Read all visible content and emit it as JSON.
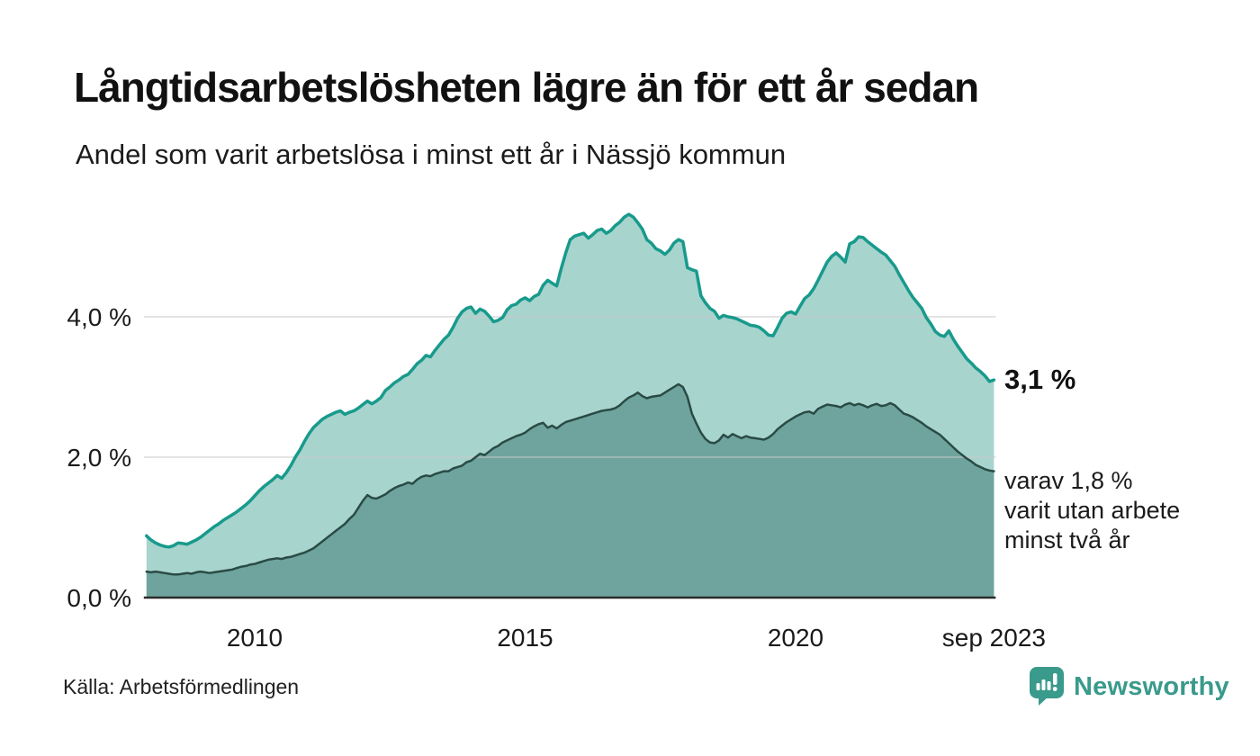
{
  "header": {
    "title": "Långtidsarbetslösheten lägre än för ett år sedan",
    "subtitle": "Andel som varit arbetslösa i minst ett år i Nässjö kommun"
  },
  "annotations": {
    "latest_value_label": "3,1 %",
    "note_lines": [
      "varav 1,8 %",
      "varit utan arbete",
      "minst två år"
    ]
  },
  "source_label": "Källa: Arbetsförmedlingen",
  "logo_text": "Newsworthy",
  "colors": {
    "accent_teal_line": "#189a8c",
    "light_area_fill": "#a8d4ce",
    "dark_area_fill": "#6ea49d",
    "dark_area_line": "#2a4b45",
    "gridline": "#c9c9c9",
    "baseline": "#2b2b2b",
    "logo_teal": "#3a9a8b",
    "text": "#1a1a1a"
  },
  "chart_data": {
    "type": "area",
    "title": "Långtidsarbetslösheten lägre än för ett år sedan",
    "subtitle": "Andel som varit arbetslösa i minst ett år i Nässjö kommun",
    "unit": "%",
    "x_start": "2008-01",
    "x_end": "2023-09",
    "frequency": "monthly",
    "ylim": [
      0,
      5.6
    ],
    "grid": "horizontal",
    "legend_position": "right-annotations",
    "yticks": [
      {
        "value": 0,
        "label": "0,0 %"
      },
      {
        "value": 2,
        "label": "2,0 %"
      },
      {
        "value": 4,
        "label": "4,0 %"
      }
    ],
    "xticks": [
      {
        "month_index": 24,
        "label": "2010"
      },
      {
        "month_index": 84,
        "label": "2015"
      },
      {
        "month_index": 144,
        "label": "2020"
      },
      {
        "month_index": 188,
        "label": "sep 2023"
      }
    ],
    "series": [
      {
        "id": "one_year",
        "name": "Arbetslösa minst ett år",
        "latest_value": 3.1,
        "stroke": "#189a8c",
        "stroke_width": 3.5,
        "fill": "#a8d4ce",
        "values": [
          0.88,
          0.82,
          0.78,
          0.75,
          0.73,
          0.72,
          0.74,
          0.78,
          0.77,
          0.76,
          0.79,
          0.82,
          0.86,
          0.91,
          0.96,
          1.01,
          1.05,
          1.1,
          1.14,
          1.18,
          1.22,
          1.27,
          1.32,
          1.38,
          1.45,
          1.52,
          1.58,
          1.63,
          1.68,
          1.74,
          1.7,
          1.78,
          1.88,
          2.0,
          2.1,
          2.22,
          2.33,
          2.42,
          2.48,
          2.54,
          2.58,
          2.61,
          2.64,
          2.66,
          2.61,
          2.64,
          2.66,
          2.7,
          2.75,
          2.8,
          2.76,
          2.8,
          2.85,
          2.95,
          3.0,
          3.06,
          3.1,
          3.15,
          3.18,
          3.25,
          3.33,
          3.38,
          3.45,
          3.43,
          3.52,
          3.6,
          3.68,
          3.74,
          3.85,
          3.98,
          4.07,
          4.12,
          4.14,
          4.05,
          4.11,
          4.08,
          4.01,
          3.93,
          3.95,
          3.99,
          4.1,
          4.16,
          4.18,
          4.24,
          4.27,
          4.23,
          4.29,
          4.32,
          4.45,
          4.52,
          4.48,
          4.44,
          4.69,
          4.91,
          5.1,
          5.15,
          5.17,
          5.19,
          5.12,
          5.17,
          5.23,
          5.25,
          5.19,
          5.23,
          5.3,
          5.35,
          5.42,
          5.46,
          5.42,
          5.34,
          5.25,
          5.1,
          5.05,
          4.97,
          4.94,
          4.89,
          4.95,
          5.05,
          5.1,
          5.07,
          4.7,
          4.67,
          4.65,
          4.3,
          4.2,
          4.12,
          4.08,
          3.98,
          4.02,
          4.0,
          3.99,
          3.97,
          3.94,
          3.91,
          3.88,
          3.87,
          3.85,
          3.8,
          3.74,
          3.73,
          3.85,
          3.98,
          4.05,
          4.07,
          4.04,
          4.15,
          4.26,
          4.31,
          4.4,
          4.52,
          4.65,
          4.78,
          4.86,
          4.91,
          4.85,
          4.78,
          5.04,
          5.07,
          5.14,
          5.13,
          5.07,
          5.02,
          4.97,
          4.92,
          4.88,
          4.8,
          4.72,
          4.6,
          4.49,
          4.38,
          4.28,
          4.2,
          4.12,
          3.99,
          3.9,
          3.79,
          3.74,
          3.72,
          3.8,
          3.68,
          3.58,
          3.49,
          3.4,
          3.34,
          3.27,
          3.22,
          3.16,
          3.08,
          3.1
        ]
      },
      {
        "id": "two_years",
        "name": "varav utan arbete minst två år",
        "latest_value": 1.8,
        "stroke": "#2a4b45",
        "stroke_width": 2.5,
        "fill": "#6ea49d",
        "values": [
          0.37,
          0.36,
          0.37,
          0.36,
          0.35,
          0.34,
          0.33,
          0.33,
          0.34,
          0.35,
          0.34,
          0.36,
          0.37,
          0.36,
          0.35,
          0.36,
          0.37,
          0.38,
          0.39,
          0.4,
          0.42,
          0.44,
          0.45,
          0.47,
          0.48,
          0.5,
          0.52,
          0.54,
          0.55,
          0.56,
          0.55,
          0.57,
          0.58,
          0.6,
          0.62,
          0.64,
          0.67,
          0.7,
          0.75,
          0.8,
          0.85,
          0.9,
          0.95,
          1.0,
          1.05,
          1.12,
          1.18,
          1.28,
          1.38,
          1.46,
          1.42,
          1.41,
          1.44,
          1.47,
          1.52,
          1.56,
          1.59,
          1.61,
          1.64,
          1.62,
          1.68,
          1.72,
          1.74,
          1.73,
          1.76,
          1.78,
          1.8,
          1.8,
          1.84,
          1.86,
          1.88,
          1.93,
          1.95,
          2.0,
          2.05,
          2.03,
          2.08,
          2.13,
          2.16,
          2.21,
          2.24,
          2.27,
          2.3,
          2.32,
          2.35,
          2.4,
          2.44,
          2.47,
          2.49,
          2.42,
          2.45,
          2.41,
          2.46,
          2.5,
          2.52,
          2.54,
          2.56,
          2.58,
          2.6,
          2.62,
          2.64,
          2.66,
          2.67,
          2.68,
          2.7,
          2.74,
          2.8,
          2.85,
          2.88,
          2.92,
          2.87,
          2.84,
          2.86,
          2.87,
          2.88,
          2.92,
          2.96,
          3.0,
          3.04,
          3.0,
          2.86,
          2.62,
          2.48,
          2.35,
          2.26,
          2.21,
          2.2,
          2.24,
          2.32,
          2.28,
          2.33,
          2.3,
          2.27,
          2.3,
          2.28,
          2.27,
          2.26,
          2.25,
          2.28,
          2.33,
          2.4,
          2.45,
          2.5,
          2.54,
          2.58,
          2.61,
          2.64,
          2.65,
          2.62,
          2.69,
          2.72,
          2.75,
          2.74,
          2.73,
          2.71,
          2.75,
          2.77,
          2.74,
          2.76,
          2.74,
          2.71,
          2.74,
          2.76,
          2.73,
          2.74,
          2.77,
          2.74,
          2.68,
          2.62,
          2.6,
          2.57,
          2.53,
          2.49,
          2.44,
          2.4,
          2.36,
          2.32,
          2.26,
          2.2,
          2.14,
          2.08,
          2.03,
          1.98,
          1.94,
          1.89,
          1.86,
          1.83,
          1.81,
          1.8
        ]
      }
    ]
  }
}
